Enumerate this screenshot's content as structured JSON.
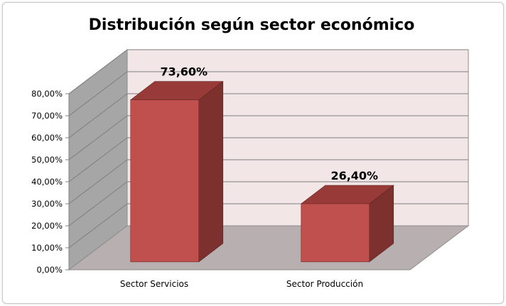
{
  "chart_data": {
    "type": "bar",
    "title": "Distribución según sector económico",
    "categories": [
      "Sector Servicios",
      "Sector Producción"
    ],
    "values": [
      73.6,
      26.4
    ],
    "data_labels": [
      "73,60%",
      "26,40%"
    ],
    "ylim": [
      0,
      80
    ],
    "ytick_labels": [
      "0,00%",
      "10,00%",
      "20,00%",
      "30,00%",
      "40,00%",
      "50,00%",
      "60,00%",
      "70,00%",
      "80,00%"
    ],
    "xlabel": "",
    "ylabel": "",
    "grid": true,
    "three_d": true,
    "colors": {
      "bar_front": "#c0504d",
      "bar_top": "#983b38",
      "bar_side": "#7d312f",
      "back_wall": "#f2e6e6",
      "side_wall": "#a6a6a6",
      "floor": "#b8b0b0",
      "gridline": "#7f7f7f"
    }
  }
}
